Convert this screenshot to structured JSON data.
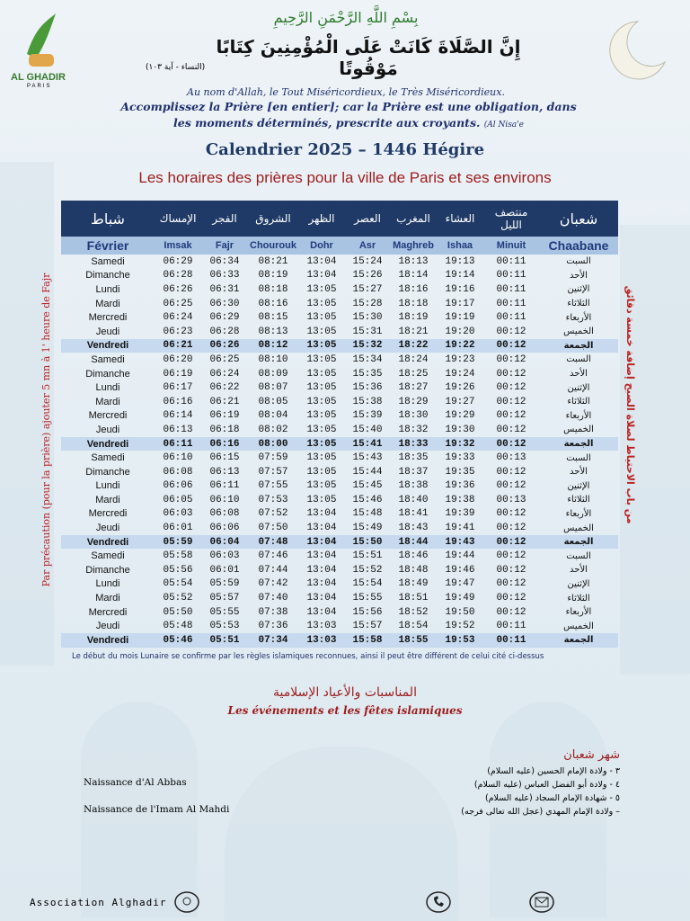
{
  "logo": {
    "name": "AL GHADIR",
    "city": "PARIS"
  },
  "header": {
    "basmala": "بِسْمِ اللَّهِ الرَّحْمَنِ الرَّحِيمِ",
    "verse": "إِنَّ الصَّلَاةَ كَانَتْ عَلَى الْمُؤْمِنِينَ كِتَابًا مَوْقُوتًا",
    "verse_ref": "(النساء - آية ١٠٣)",
    "basmala_fr": "Au nom d'Allah, le Tout Miséricordieux, le Très Miséricordieux.",
    "verse_fr": "Accomplissez la Prière [en entier]; car la Prière est une obligation, dans les moments déterminés, prescrite aux croyants.",
    "verse_fr_ref": "(Al Nisa'e",
    "title": "Calendrier 2025 – 1446 Hégire",
    "subtitle": "Les horaires des prières pour la ville de Paris et ses environs"
  },
  "table": {
    "header_ar": [
      "شباط",
      "الإمساك",
      "الفجر",
      "الشروق",
      "الظهر",
      "العصر",
      "المغرب",
      "العشاء",
      "منتصف الليل",
      "شعبان"
    ],
    "header_fr": [
      "Février",
      "Imsak",
      "Fajr",
      "Chourouk",
      "Dohr",
      "Asr",
      "Maghreb",
      "Ishaa",
      "Minuit",
      "Chaabane"
    ],
    "rows": [
      [
        "Samedi",
        "06:29",
        "06:34",
        "08:21",
        "13:04",
        "15:24",
        "18:13",
        "19:13",
        "00:11",
        "السبت"
      ],
      [
        "Dimanche",
        "06:28",
        "06:33",
        "08:19",
        "13:04",
        "15:26",
        "18:14",
        "19:14",
        "00:11",
        "الأحد"
      ],
      [
        "Lundi",
        "06:26",
        "06:31",
        "08:18",
        "13:05",
        "15:27",
        "18:16",
        "19:16",
        "00:11",
        "الإثنين"
      ],
      [
        "Mardi",
        "06:25",
        "06:30",
        "08:16",
        "13:05",
        "15:28",
        "18:18",
        "19:17",
        "00:11",
        "الثلاثاء"
      ],
      [
        "Mercredi",
        "06:24",
        "06:29",
        "08:15",
        "13:05",
        "15:30",
        "18:19",
        "19:19",
        "00:11",
        "الأربعاء"
      ],
      [
        "Jeudi",
        "06:23",
        "06:28",
        "08:13",
        "13:05",
        "15:31",
        "18:21",
        "19:20",
        "00:12",
        "الخميس"
      ],
      [
        "Vendredi",
        "06:21",
        "06:26",
        "08:12",
        "13:05",
        "15:32",
        "18:22",
        "19:22",
        "00:12",
        "الجمعة"
      ],
      [
        "Samedi",
        "06:20",
        "06:25",
        "08:10",
        "13:05",
        "15:34",
        "18:24",
        "19:23",
        "00:12",
        "السبت"
      ],
      [
        "Dimanche",
        "06:19",
        "06:24",
        "08:09",
        "13:05",
        "15:35",
        "18:25",
        "19:24",
        "00:12",
        "الأحد"
      ],
      [
        "Lundi",
        "06:17",
        "06:22",
        "08:07",
        "13:05",
        "15:36",
        "18:27",
        "19:26",
        "00:12",
        "الإثنين"
      ],
      [
        "Mardi",
        "06:16",
        "06:21",
        "08:05",
        "13:05",
        "15:38",
        "18:29",
        "19:27",
        "00:12",
        "الثلاثاء"
      ],
      [
        "Mercredi",
        "06:14",
        "06:19",
        "08:04",
        "13:05",
        "15:39",
        "18:30",
        "19:29",
        "00:12",
        "الأربعاء"
      ],
      [
        "Jeudi",
        "06:13",
        "06:18",
        "08:02",
        "13:05",
        "15:40",
        "18:32",
        "19:30",
        "00:12",
        "الخميس"
      ],
      [
        "Vendredi",
        "06:11",
        "06:16",
        "08:00",
        "13:05",
        "15:41",
        "18:33",
        "19:32",
        "00:12",
        "الجمعة"
      ],
      [
        "Samedi",
        "06:10",
        "06:15",
        "07:59",
        "13:05",
        "15:43",
        "18:35",
        "19:33",
        "00:13",
        "السبت"
      ],
      [
        "Dimanche",
        "06:08",
        "06:13",
        "07:57",
        "13:05",
        "15:44",
        "18:37",
        "19:35",
        "00:12",
        "الأحد"
      ],
      [
        "Lundi",
        "06:06",
        "06:11",
        "07:55",
        "13:05",
        "15:45",
        "18:38",
        "19:36",
        "00:12",
        "الإثنين"
      ],
      [
        "Mardi",
        "06:05",
        "06:10",
        "07:53",
        "13:05",
        "15:46",
        "18:40",
        "19:38",
        "00:13",
        "الثلاثاء"
      ],
      [
        "Mercredi",
        "06:03",
        "06:08",
        "07:52",
        "13:04",
        "15:48",
        "18:41",
        "19:39",
        "00:12",
        "الأربعاء"
      ],
      [
        "Jeudi",
        "06:01",
        "06:06",
        "07:50",
        "13:04",
        "15:49",
        "18:43",
        "19:41",
        "00:12",
        "الخميس"
      ],
      [
        "Vendredi",
        "05:59",
        "06:04",
        "07:48",
        "13:04",
        "15:50",
        "18:44",
        "19:43",
        "00:12",
        "الجمعة"
      ],
      [
        "Samedi",
        "05:58",
        "06:03",
        "07:46",
        "13:04",
        "15:51",
        "18:46",
        "19:44",
        "00:12",
        "السبت"
      ],
      [
        "Dimanche",
        "05:56",
        "06:01",
        "07:44",
        "13:04",
        "15:52",
        "18:48",
        "19:46",
        "00:12",
        "الأحد"
      ],
      [
        "Lundi",
        "05:54",
        "05:59",
        "07:42",
        "13:04",
        "15:54",
        "18:49",
        "19:47",
        "00:12",
        "الإثنين"
      ],
      [
        "Mardi",
        "05:52",
        "05:57",
        "07:40",
        "13:04",
        "15:55",
        "18:51",
        "19:49",
        "00:12",
        "الثلاثاء"
      ],
      [
        "Mercredi",
        "05:50",
        "05:55",
        "07:38",
        "13:04",
        "15:56",
        "18:52",
        "19:50",
        "00:12",
        "الأربعاء"
      ],
      [
        "Jeudi",
        "05:48",
        "05:53",
        "07:36",
        "13:03",
        "15:57",
        "18:54",
        "19:52",
        "00:11",
        "الخميس"
      ],
      [
        "Vendredi",
        "05:46",
        "05:51",
        "07:34",
        "13:03",
        "15:58",
        "18:55",
        "19:53",
        "00:11",
        "الجمعة"
      ]
    ],
    "note": "Le début du mois Lunaire se confirme par les règles islamiques reconnues, ainsi il peut être différent de celui cité ci-dessus"
  },
  "side_notes": {
    "left": "Par précaution (pour la prière) ajouter 5 mn à 1' heure de Fajr",
    "right": "من باب الاحتياط لصلاة الصبح إضافة خمسة دقائق"
  },
  "events": {
    "title_ar": "المناسبات والأعياد الإسلامية",
    "title_fr": "Les événements et les fêtes islamiques",
    "month_ar": "شهر شعبان",
    "items_ar": [
      "٣ - ولادة الإمام الحسين (عليه السلام)",
      "٤ - ولادة أبو الفضل العباس (عليه السلام)",
      "٥ - شهادة الإمام السجاد (عليه السلام)",
      "– ولادة الإمام المهدي (عجل الله تعالى فرجه)"
    ],
    "items_fr": [
      "Naissance d'Al Abbas",
      "Naissance de l'Imam Al Mahdi"
    ]
  },
  "footer": {
    "association": "Association Alghadir"
  }
}
